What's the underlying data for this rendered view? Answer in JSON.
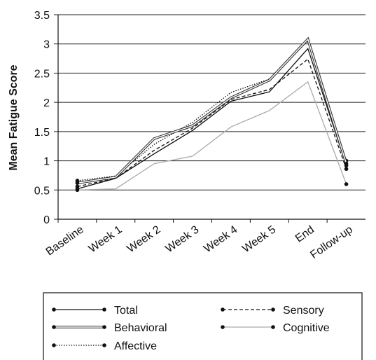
{
  "chart_data": {
    "type": "line",
    "title": "",
    "xlabel": "",
    "ylabel": "Mean Fatigue Score",
    "categories": [
      "Baseline",
      "Week 1",
      "Week 2",
      "Week 3",
      "Week 4",
      "Week 5",
      "End",
      "Follow-up"
    ],
    "ylim": [
      0,
      3.5
    ],
    "yticks": [
      "0",
      "0.5",
      "1",
      "1.5",
      "2",
      "2.5",
      "3",
      "3.5"
    ],
    "grid": "horizontal",
    "legend_position": "bottom",
    "series": [
      {
        "name": "Total",
        "style": "solid",
        "color": "#111111",
        "values": [
          0.52,
          0.7,
          1.12,
          1.52,
          2.02,
          2.18,
          2.92,
          0.92
        ]
      },
      {
        "name": "Sensory",
        "style": "dashed",
        "color": "#111111",
        "values": [
          0.56,
          0.7,
          1.18,
          1.56,
          2.05,
          2.22,
          2.74,
          0.86
        ]
      },
      {
        "name": "Behavioral",
        "style": "double",
        "color": "#333333",
        "values": [
          0.62,
          0.72,
          1.38,
          1.6,
          2.08,
          2.38,
          3.08,
          0.95
        ]
      },
      {
        "name": "Cognitive",
        "style": "solid",
        "color": "#aaaaaa",
        "values": [
          0.5,
          0.52,
          0.95,
          1.08,
          1.58,
          1.86,
          2.35,
          0.6
        ]
      },
      {
        "name": "Affective",
        "style": "dotted",
        "color": "#111111",
        "values": [
          0.66,
          0.74,
          1.28,
          1.66,
          2.17,
          2.4,
          3.05,
          1.0
        ]
      }
    ]
  }
}
